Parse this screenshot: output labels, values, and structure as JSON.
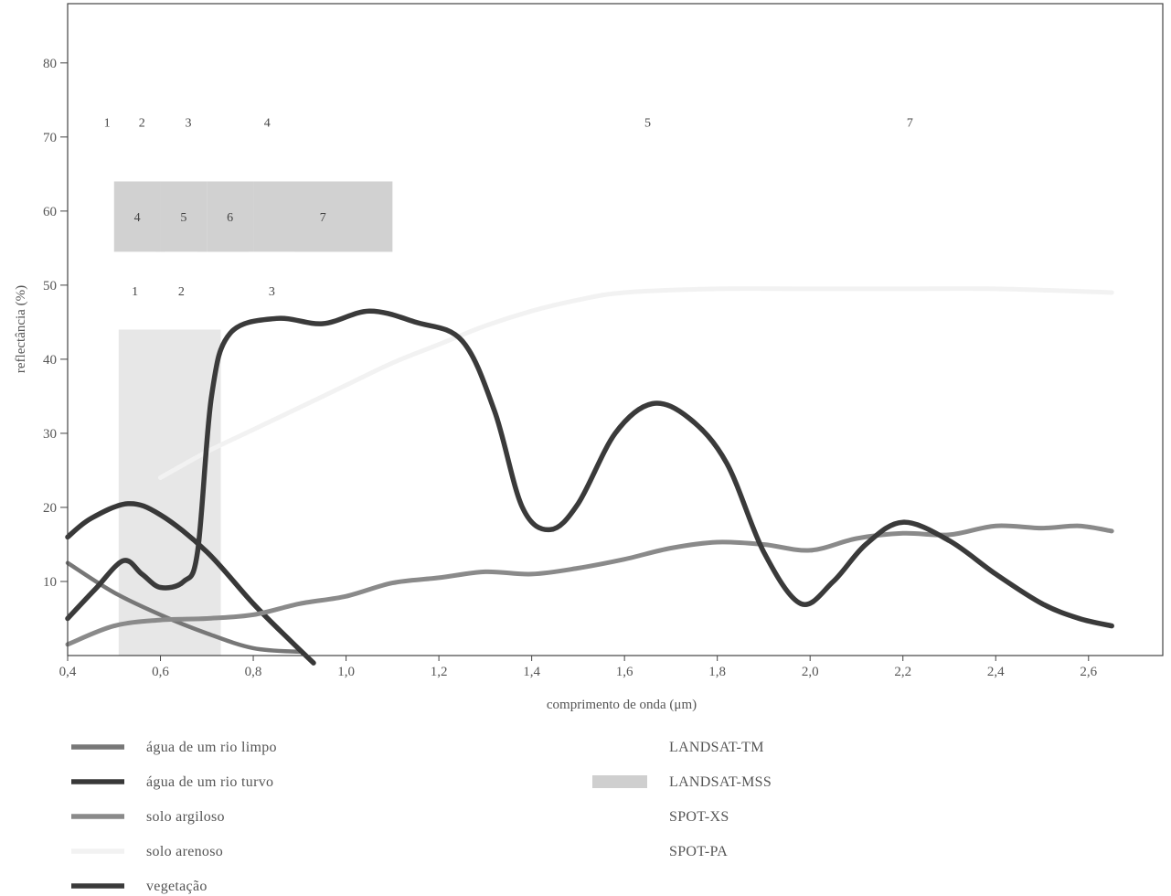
{
  "chart_data": {
    "type": "line",
    "xlabel": "comprimento de onda (μm)",
    "ylabel": "reflectância (%)",
    "xlim": [
      0.4,
      2.76
    ],
    "ylim": [
      0,
      88
    ],
    "x_ticks": [
      0.4,
      0.6,
      0.8,
      1.0,
      1.2,
      1.4,
      1.6,
      1.8,
      2.0,
      2.2,
      2.4,
      2.6
    ],
    "x_tick_labels": [
      "0,4",
      "0,6",
      "0,8",
      "1,0",
      "1,2",
      "1,4",
      "1,6",
      "1,8",
      "2,0",
      "2,2",
      "2,4",
      "2,6"
    ],
    "y_ticks": [
      10,
      20,
      30,
      40,
      50,
      60,
      70,
      80
    ],
    "y_tick_labels": [
      "10",
      "20",
      "30",
      "40",
      "50",
      "60",
      "70",
      "80"
    ],
    "grid": false,
    "legend_position": "bottom",
    "series": [
      {
        "name": "água de um rio limpo",
        "color": "#777777",
        "points": [
          [
            0.4,
            12.5
          ],
          [
            0.5,
            8.5
          ],
          [
            0.6,
            5.5
          ],
          [
            0.7,
            3
          ],
          [
            0.8,
            1
          ],
          [
            0.9,
            0.5
          ]
        ]
      },
      {
        "name": "água de um rio turvo",
        "color": "#383838",
        "points": [
          [
            0.4,
            16
          ],
          [
            0.45,
            18.5
          ],
          [
            0.53,
            20.5
          ],
          [
            0.6,
            19
          ],
          [
            0.7,
            14
          ],
          [
            0.8,
            7
          ],
          [
            0.88,
            2
          ],
          [
            0.93,
            -1
          ]
        ]
      },
      {
        "name": "solo argiloso",
        "color": "#8a8a8a",
        "points": [
          [
            0.4,
            1.5
          ],
          [
            0.5,
            4
          ],
          [
            0.6,
            4.8
          ],
          [
            0.7,
            5
          ],
          [
            0.8,
            5.5
          ],
          [
            0.9,
            7
          ],
          [
            1.0,
            8
          ],
          [
            1.1,
            9.8
          ],
          [
            1.2,
            10.5
          ],
          [
            1.3,
            11.3
          ],
          [
            1.4,
            11
          ],
          [
            1.5,
            11.8
          ],
          [
            1.6,
            13
          ],
          [
            1.7,
            14.5
          ],
          [
            1.8,
            15.3
          ],
          [
            1.9,
            15
          ],
          [
            2.0,
            14.2
          ],
          [
            2.1,
            15.8
          ],
          [
            2.2,
            16.5
          ],
          [
            2.3,
            16.3
          ],
          [
            2.4,
            17.5
          ],
          [
            2.5,
            17.2
          ],
          [
            2.58,
            17.5
          ],
          [
            2.65,
            16.8
          ]
        ]
      },
      {
        "name": "solo arenoso",
        "color": "#f2f2f2",
        "points": [
          [
            0.6,
            24
          ],
          [
            0.7,
            27.5
          ],
          [
            0.8,
            30.5
          ],
          [
            0.9,
            33.5
          ],
          [
            1.0,
            36.5
          ],
          [
            1.1,
            39.5
          ],
          [
            1.2,
            42
          ],
          [
            1.3,
            44.5
          ],
          [
            1.4,
            46.5
          ],
          [
            1.5,
            48
          ],
          [
            1.6,
            49
          ],
          [
            1.8,
            49.5
          ],
          [
            2.0,
            49.5
          ],
          [
            2.2,
            49.5
          ],
          [
            2.4,
            49.5
          ],
          [
            2.65,
            49
          ]
        ]
      },
      {
        "name": "vegetação",
        "color": "#3a3a3a",
        "points": [
          [
            0.4,
            5
          ],
          [
            0.46,
            9
          ],
          [
            0.52,
            12.8
          ],
          [
            0.56,
            11
          ],
          [
            0.6,
            9.2
          ],
          [
            0.65,
            10
          ],
          [
            0.68,
            14
          ],
          [
            0.71,
            35
          ],
          [
            0.75,
            43.5
          ],
          [
            0.85,
            45.5
          ],
          [
            0.95,
            44.8
          ],
          [
            1.05,
            46.5
          ],
          [
            1.15,
            45
          ],
          [
            1.25,
            42.5
          ],
          [
            1.32,
            33
          ],
          [
            1.38,
            20
          ],
          [
            1.44,
            17
          ],
          [
            1.5,
            20.5
          ],
          [
            1.58,
            30
          ],
          [
            1.66,
            34
          ],
          [
            1.74,
            32
          ],
          [
            1.82,
            26
          ],
          [
            1.9,
            14
          ],
          [
            1.98,
            7
          ],
          [
            2.05,
            10
          ],
          [
            2.12,
            15
          ],
          [
            2.2,
            18
          ],
          [
            2.3,
            15.5
          ],
          [
            2.4,
            11
          ],
          [
            2.5,
            7
          ],
          [
            2.58,
            5
          ],
          [
            2.65,
            4
          ]
        ]
      }
    ],
    "band_legend": [
      {
        "name": "LANDSAT-TM",
        "color": "#7a7a7a"
      },
      {
        "name": "LANDSAT-MSS",
        "color": "#cfcfcf"
      },
      {
        "name": "SPOT-XS",
        "color": "#ffffff"
      },
      {
        "name": "SPOT-PA",
        "color": "#e6e6e6"
      }
    ],
    "bands": [
      {
        "sensor": "LANDSAT-MSS",
        "label": "4",
        "x0": 0.5,
        "x1": 0.6,
        "y0": 54.5,
        "y1": 64
      },
      {
        "sensor": "LANDSAT-MSS",
        "label": "5",
        "x0": 0.6,
        "x1": 0.7,
        "y0": 54.5,
        "y1": 64
      },
      {
        "sensor": "LANDSAT-MSS",
        "label": "6",
        "x0": 0.7,
        "x1": 0.8,
        "y0": 54.5,
        "y1": 64
      },
      {
        "sensor": "LANDSAT-MSS",
        "label": "7",
        "x0": 0.8,
        "x1": 1.1,
        "y0": 54.5,
        "y1": 64
      },
      {
        "sensor": "SPOT-XS",
        "label": "1",
        "x0": 0.5,
        "x1": 0.59,
        "y0": 44,
        "y1": 54.5
      },
      {
        "sensor": "SPOT-XS",
        "label": "2",
        "x0": 0.61,
        "x1": 0.68,
        "y0": 44,
        "y1": 54.5
      },
      {
        "sensor": "SPOT-XS",
        "label": "3",
        "x0": 0.79,
        "x1": 0.89,
        "y0": 44,
        "y1": 54.5
      },
      {
        "sensor": "LANDSAT-TM",
        "label": "1",
        "x0": 0.45,
        "x1": 0.52,
        "y0": 69,
        "y1": 75
      },
      {
        "sensor": "LANDSAT-TM",
        "label": "2",
        "x0": 0.52,
        "x1": 0.6,
        "y0": 69,
        "y1": 75
      },
      {
        "sensor": "LANDSAT-TM",
        "label": "3",
        "x0": 0.63,
        "x1": 0.69,
        "y0": 69,
        "y1": 75
      },
      {
        "sensor": "LANDSAT-TM",
        "label": "4",
        "x0": 0.76,
        "x1": 0.9,
        "y0": 69,
        "y1": 75
      },
      {
        "sensor": "LANDSAT-TM",
        "label": "5",
        "x0": 1.55,
        "x1": 1.75,
        "y0": 69,
        "y1": 75
      },
      {
        "sensor": "LANDSAT-TM",
        "label": "7",
        "x0": 2.08,
        "x1": 2.35,
        "y0": 69,
        "y1": 75
      },
      {
        "sensor": "SPOT-PA",
        "label": "",
        "x0": 0.51,
        "x1": 0.73,
        "y0": 0,
        "y1": 44
      }
    ]
  }
}
